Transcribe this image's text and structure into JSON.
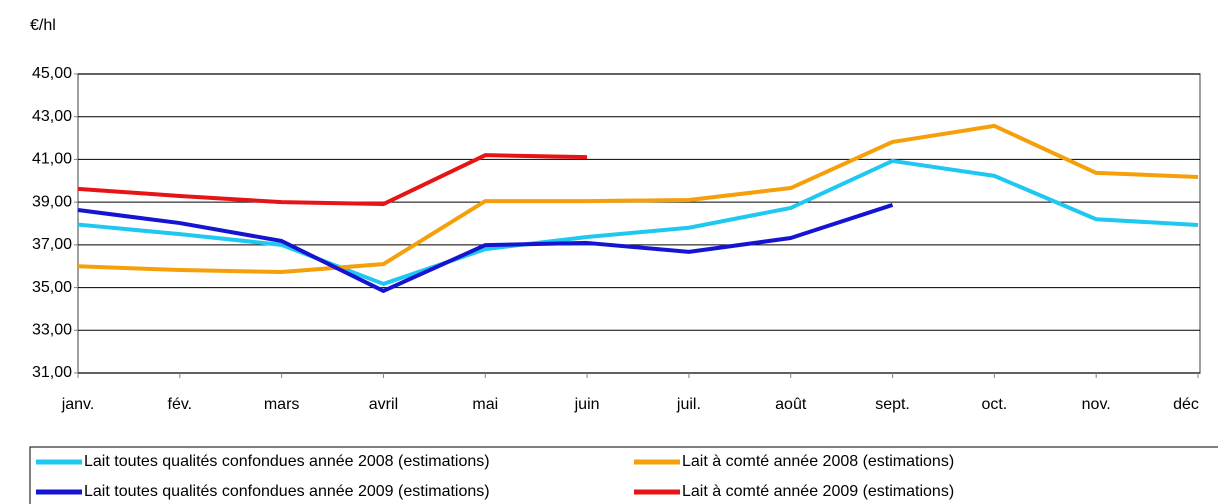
{
  "chart_data": {
    "type": "line",
    "y_axis_label": "€/hl",
    "categories": [
      "janv.",
      "fév.",
      "mars",
      "avril",
      "mai",
      "juin",
      "juil.",
      "août",
      "sept.",
      "oct.",
      "nov.",
      "déc"
    ],
    "ylim": [
      31,
      45
    ],
    "yticks": [
      {
        "value": 31,
        "label": "31,00"
      },
      {
        "value": 33,
        "label": "33,00"
      },
      {
        "value": 35,
        "label": "35,00"
      },
      {
        "value": 37,
        "label": "37,00"
      },
      {
        "value": 39,
        "label": "39,00"
      },
      {
        "value": 41,
        "label": "41,00"
      },
      {
        "value": 43,
        "label": "43,00"
      },
      {
        "value": 45,
        "label": "45,00"
      }
    ],
    "grid": true,
    "series": [
      {
        "name": "Lait toutes qualités confondues année 2008 (estimations)",
        "color": "#1ec8f0",
        "values": [
          37.95,
          37.5,
          37.0,
          35.17,
          36.8,
          37.37,
          37.8,
          38.73,
          40.93,
          40.23,
          38.2,
          37.93
        ]
      },
      {
        "name": "Lait à comté année 2008 (estimations)",
        "color": "#f5a00a",
        "values": [
          36.0,
          35.82,
          35.73,
          36.1,
          39.05,
          39.05,
          39.1,
          39.66,
          41.82,
          42.57,
          40.37,
          40.18
        ]
      },
      {
        "name": "Lait toutes qualités confondues année 2009 (estimations)",
        "color": "#1414d2",
        "values": [
          38.63,
          38.02,
          37.18,
          34.84,
          36.99,
          37.09,
          36.67,
          37.32,
          38.87,
          null,
          null,
          null
        ]
      },
      {
        "name": "Lait à comté année 2009 (estimations)",
        "color": "#e61414",
        "values": [
          39.62,
          39.29,
          39.0,
          38.91,
          41.2,
          41.11,
          null,
          null,
          null,
          null,
          null,
          null
        ]
      }
    ]
  }
}
